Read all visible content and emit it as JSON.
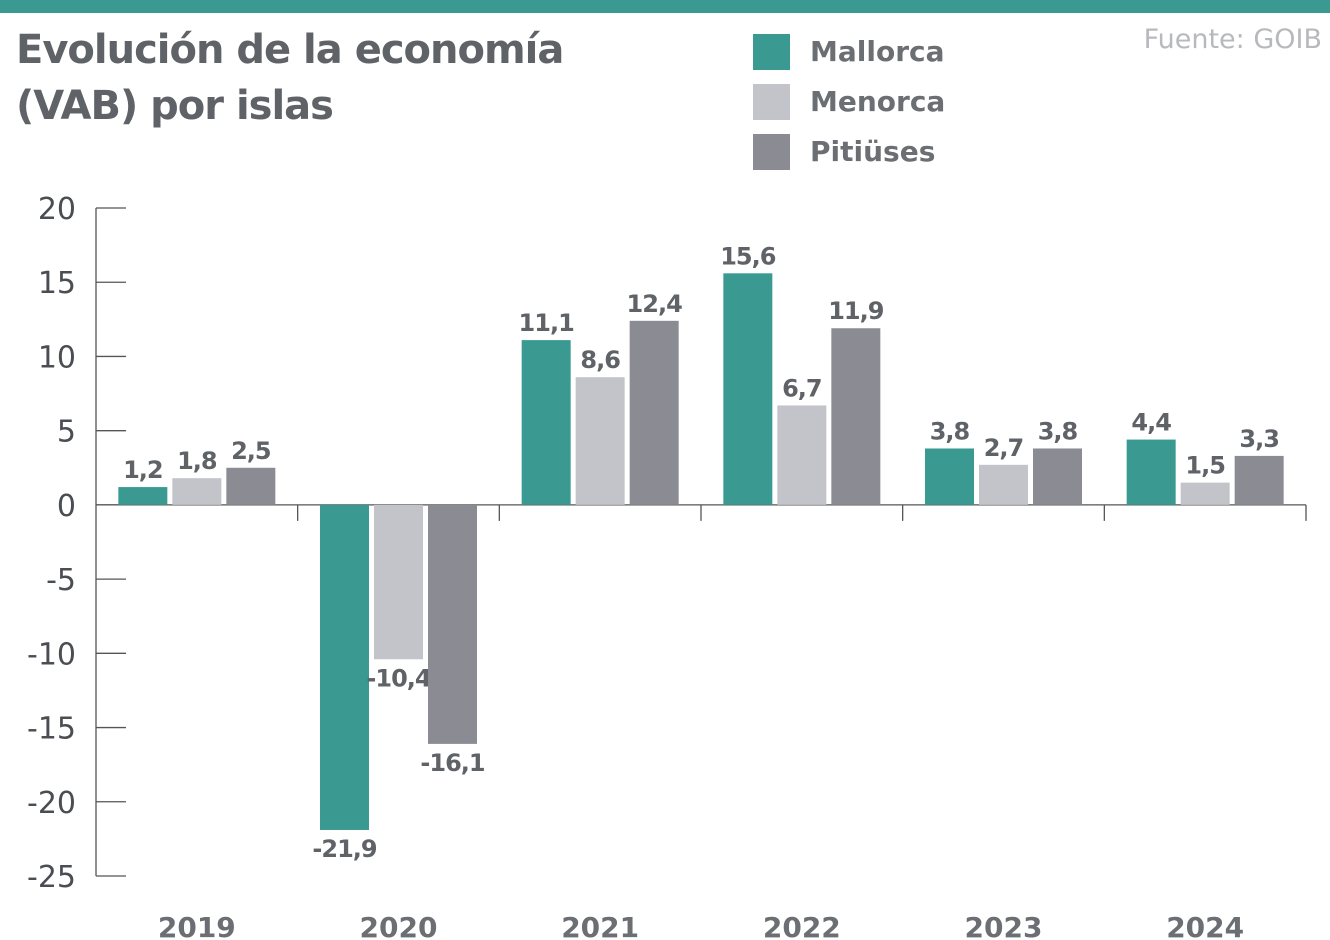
{
  "header": {
    "title_line1": "Evolución de la economía",
    "title_line2": "(VAB) por islas",
    "source": "Fuente: GOIB"
  },
  "colors": {
    "accent": "#3a9a92",
    "text": "#5f6368",
    "axis": "#555555"
  },
  "chart_data": {
    "type": "bar",
    "categories": [
      "2019",
      "2020",
      "2021",
      "2022",
      "2023",
      "2024"
    ],
    "series": [
      {
        "name": "Mallorca",
        "color": "#3a9a92",
        "values": [
          1.2,
          -21.9,
          11.1,
          15.6,
          3.8,
          4.4
        ],
        "labels": [
          "1,2",
          "-21,9",
          "11,1",
          "15,6",
          "3,8",
          "4,4"
        ]
      },
      {
        "name": "Menorca",
        "color": "#c2c4c9",
        "values": [
          1.8,
          -10.4,
          8.6,
          6.7,
          2.7,
          1.5
        ],
        "labels": [
          "1,8",
          "-10,4",
          "8,6",
          "6,7",
          "2,7",
          "1,5"
        ]
      },
      {
        "name": "Pitiüses",
        "color": "#8b8b93",
        "values": [
          2.5,
          -16.1,
          12.4,
          11.9,
          3.8,
          3.3
        ],
        "labels": [
          "2,5",
          "-16,1",
          "12,4",
          "11,9",
          "3,8",
          "3,3"
        ]
      }
    ],
    "yticks": [
      20,
      15,
      10,
      5,
      0,
      -5,
      -10,
      -15,
      -20,
      -25
    ],
    "ytick_labels": [
      "20",
      "15",
      "10",
      "5",
      "0",
      "-5",
      "-10",
      "-15",
      "-20",
      "-25"
    ],
    "ylim": [
      -25,
      20
    ],
    "legend_position": "top",
    "grid": false
  }
}
